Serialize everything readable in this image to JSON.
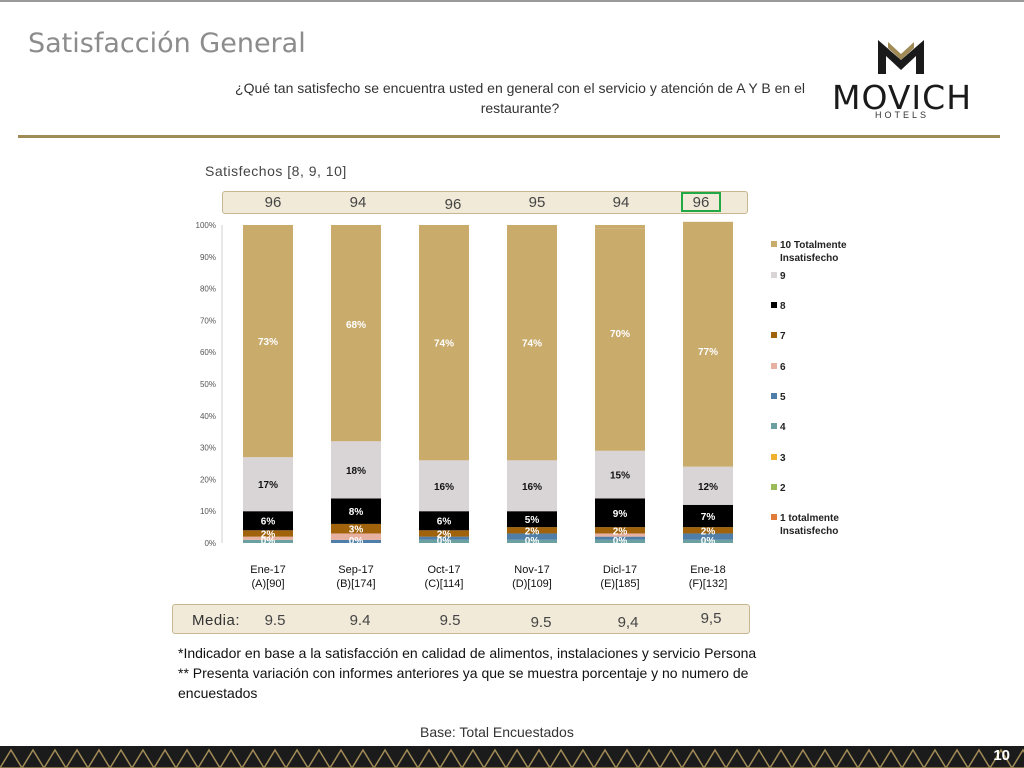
{
  "header": {
    "title": "Satisfacción General",
    "question": "¿Qué tan satisfecho se encuentra usted en general con el servicio y atención de A Y B en el restaurante?",
    "brand": "MOVICH",
    "brand_sub": "HOTELS"
  },
  "satisfied": {
    "label": "Satisfechos [8, 9, 10]",
    "values": [
      "96",
      "94",
      "96",
      "95",
      "94",
      "96"
    ]
  },
  "media": {
    "label": "Media:",
    "values": [
      "9.5",
      "9.4",
      "9.5",
      "9.5",
      "9,4",
      "9,5"
    ]
  },
  "notes": {
    "line1": "*Indicador en base a la satisfacción en calidad de alimentos, instalaciones y servicio Persona",
    "line2": "** Presenta variación con informes anteriores ya que se muestra porcentaje y no numero de encuestados"
  },
  "base": "Base: Total Encuestados",
  "page_number": "10",
  "chart_data": {
    "type": "bar",
    "stacked": true,
    "ylim": [
      0,
      100
    ],
    "yticks": [
      "0%",
      "10%",
      "20%",
      "30%",
      "40%",
      "50%",
      "60%",
      "70%",
      "80%",
      "90%",
      "100%"
    ],
    "categories": [
      [
        "Ene-17",
        "(A)[90]"
      ],
      [
        "Sep-17",
        "(B)[174]"
      ],
      [
        "Oct-17",
        "(C)[114]"
      ],
      [
        "Nov-17",
        "(D)[109]"
      ],
      [
        "Dicl-17",
        "(E)[185]"
      ],
      [
        "Ene-18",
        "(F)[132]"
      ]
    ],
    "series": [
      {
        "name": "1 totalmente Insatisfecho",
        "color": "#e07b39",
        "values": [
          0,
          0,
          0,
          0,
          0,
          0
        ]
      },
      {
        "name": "2",
        "color": "#9bbb59",
        "values": [
          0,
          0,
          0,
          0,
          0,
          0
        ]
      },
      {
        "name": "3",
        "color": "#f0b030",
        "values": [
          0,
          0,
          0,
          0,
          0,
          0
        ]
      },
      {
        "name": "4",
        "color": "#6aa0a0",
        "values": [
          1,
          0,
          1,
          1,
          1,
          1
        ]
      },
      {
        "name": "5",
        "color": "#4f7fa8",
        "values": [
          0,
          1,
          1,
          2,
          1,
          2
        ]
      },
      {
        "name": "6",
        "color": "#e8b0a0",
        "values": [
          1,
          2,
          0,
          0,
          1,
          0
        ]
      },
      {
        "name": "7",
        "color": "#a0620a",
        "values": [
          2,
          3,
          2,
          2,
          2,
          2
        ]
      },
      {
        "name": "8",
        "color": "#000000",
        "values": [
          6,
          8,
          6,
          5,
          9,
          7
        ]
      },
      {
        "name": "9",
        "color": "#d9d5d6",
        "values": [
          17,
          18,
          16,
          16,
          15,
          12
        ]
      },
      {
        "name": "10 Totalmente Insatisfecho",
        "color": "#c9ab6c",
        "values": [
          73,
          68,
          74,
          74,
          70,
          77
        ]
      }
    ],
    "labels": {
      "10": [
        "73%",
        "68%",
        "74%",
        "74%",
        "70%",
        "77%"
      ],
      "9": [
        "17%",
        "18%",
        "16%",
        "16%",
        "15%",
        "12%"
      ],
      "8": [
        "6%",
        "8%",
        "6%",
        "5%",
        "9%",
        "7%"
      ],
      "7": [
        "2%",
        "3%",
        "2%",
        "2%",
        "2%",
        "2%"
      ],
      "low": [
        "0%",
        "0%",
        "0%",
        "0%",
        "0%",
        "0%"
      ]
    },
    "legend": [
      {
        "name": "10 Totalmente Insatisfecho",
        "color": "#c9ab6c"
      },
      {
        "name": "9",
        "color": "#d9d5d6"
      },
      {
        "name": "8",
        "color": "#000000"
      },
      {
        "name": "7",
        "color": "#a0620a"
      },
      {
        "name": "6",
        "color": "#e8b0a0"
      },
      {
        "name": "5",
        "color": "#4f7fa8"
      },
      {
        "name": "4",
        "color": "#6aa0a0"
      },
      {
        "name": "3",
        "color": "#f0b030"
      },
      {
        "name": "2",
        "color": "#9bbb59"
      },
      {
        "name": "1 totalmente Insatisfecho",
        "color": "#e07b39"
      }
    ]
  }
}
